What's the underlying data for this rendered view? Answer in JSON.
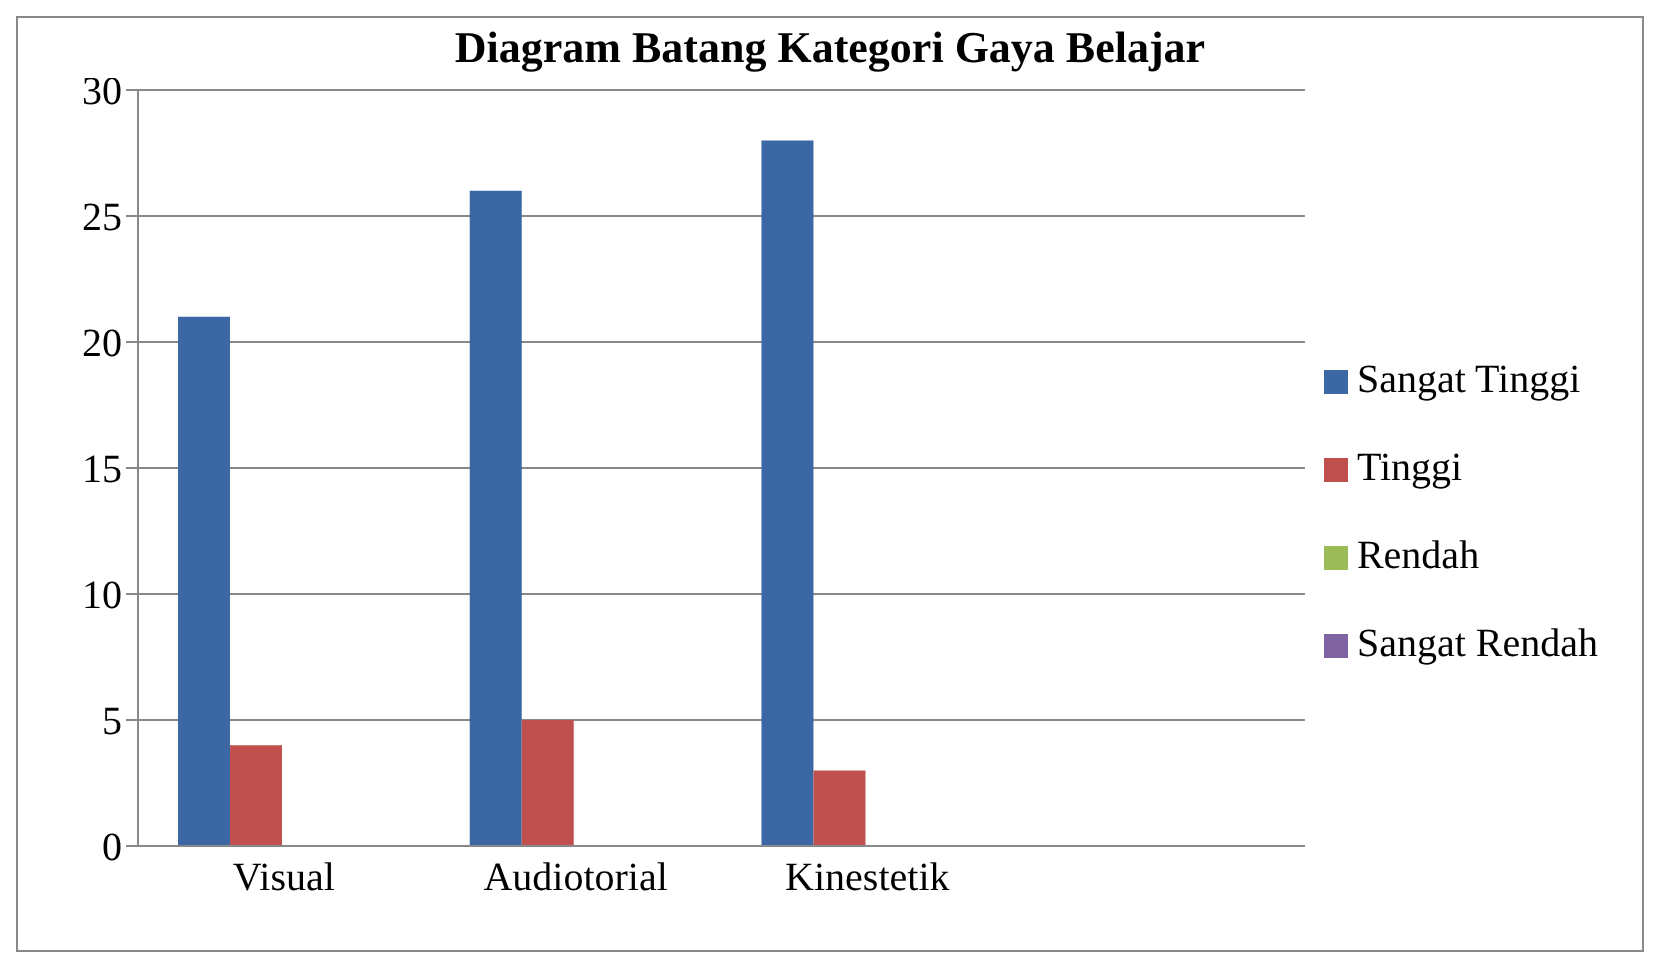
{
  "chart_data": {
    "type": "bar",
    "title": "Diagram Batang Kategori Gaya Belajar",
    "categories": [
      "Visual",
      "Audiotorial",
      "Kinestetik",
      null
    ],
    "series": [
      {
        "name": "Sangat Tinggi",
        "color": "#3c67a5",
        "values": [
          21,
          26,
          28,
          null
        ]
      },
      {
        "name": "Tinggi",
        "color": "#c0504d",
        "values": [
          4,
          5,
          3,
          null
        ]
      },
      {
        "name": "Rendah",
        "color": "#9bbb59",
        "values": [
          0,
          0,
          0,
          null
        ]
      },
      {
        "name": "Sangat Rendah",
        "color": "#8064a2",
        "values": [
          0,
          0,
          0,
          null
        ]
      }
    ],
    "ylim": [
      0,
      30
    ],
    "yticks": [
      0,
      5,
      10,
      15,
      20,
      25,
      30
    ],
    "grid": "y",
    "legend": "right"
  }
}
